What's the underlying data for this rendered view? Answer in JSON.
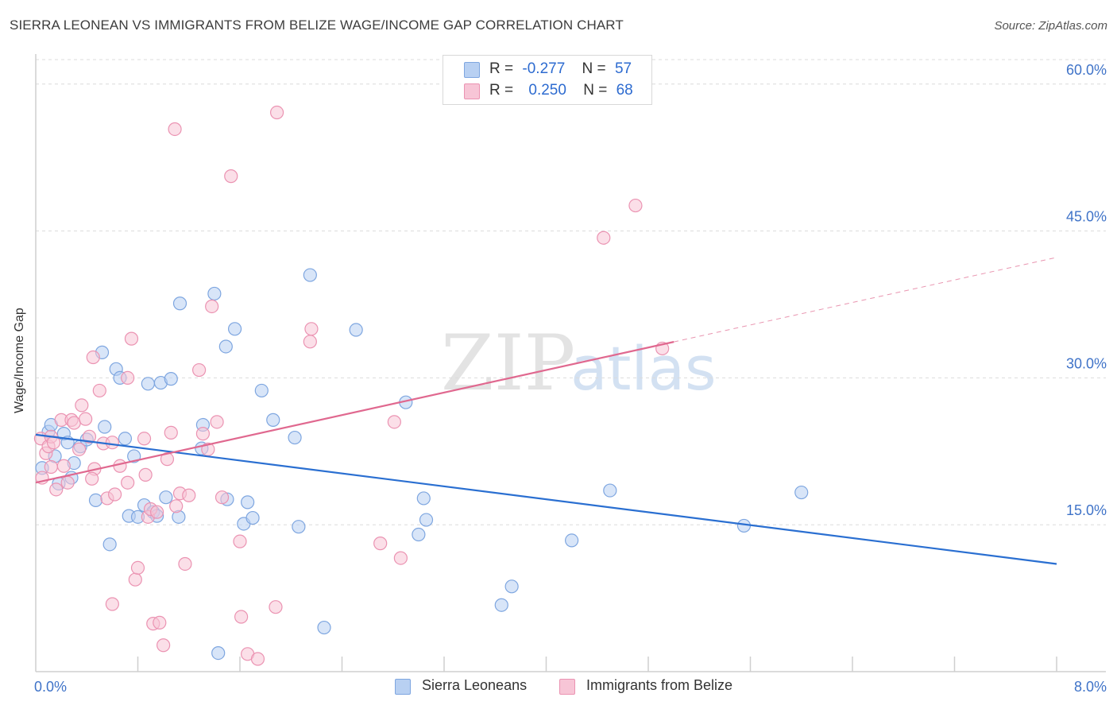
{
  "title": "SIERRA LEONEAN VS IMMIGRANTS FROM BELIZE WAGE/INCOME GAP CORRELATION CHART",
  "source": "Source: ZipAtlas.com",
  "watermark": {
    "zip": "ZIP",
    "atlas": "atlas"
  },
  "colors": {
    "blue_fill": "#b8d0f2",
    "blue_stroke": "#7ea6e0",
    "blue_line": "#2a6fd1",
    "pink_fill": "#f7c5d6",
    "pink_stroke": "#eb93b2",
    "pink_line": "#e0688f",
    "tick_text": "#3f73c8",
    "grid": "#dcdcdc"
  },
  "legend": {
    "rows": [
      {
        "r_label": "R =",
        "r_value": "-0.277",
        "n_label": "N =",
        "n_value": "57"
      },
      {
        "r_label": "R =",
        "r_value": "0.250",
        "n_label": "N =",
        "n_value": "68"
      }
    ]
  },
  "chart_data": {
    "type": "scatter",
    "title": "SIERRA LEONEAN VS IMMIGRANTS FROM BELIZE WAGE/INCOME GAP CORRELATION CHART",
    "xlabel": "",
    "ylabel": "Wage/Income Gap",
    "xlim": [
      0,
      8
    ],
    "ylim": [
      0,
      62.5
    ],
    "x_tick_labels": [
      "0.0%",
      "8.0%"
    ],
    "y_ticks": [
      15,
      30,
      45,
      60
    ],
    "y_tick_labels": [
      "15.0%",
      "30.0%",
      "45.0%",
      "60.0%"
    ],
    "grid": true,
    "series": [
      {
        "name": "Sierra Leoneans",
        "color": "blue",
        "r": -0.277,
        "n": 57,
        "trend": {
          "x0": 0.0,
          "y0": 24.2,
          "x1": 8.0,
          "y1": 11.0,
          "solid_until": 8.0
        },
        "points": [
          [
            0.05,
            20.8
          ],
          [
            0.1,
            24.5
          ],
          [
            0.12,
            25.2
          ],
          [
            0.15,
            22.0
          ],
          [
            0.18,
            19.2
          ],
          [
            0.22,
            24.3
          ],
          [
            0.25,
            23.4
          ],
          [
            0.28,
            19.8
          ],
          [
            0.3,
            21.3
          ],
          [
            0.35,
            23.0
          ],
          [
            0.4,
            23.7
          ],
          [
            0.47,
            17.5
          ],
          [
            0.52,
            32.6
          ],
          [
            0.54,
            25.0
          ],
          [
            0.58,
            13.0
          ],
          [
            0.63,
            30.9
          ],
          [
            0.66,
            30.0
          ],
          [
            0.7,
            23.8
          ],
          [
            0.73,
            15.9
          ],
          [
            0.77,
            22.0
          ],
          [
            0.8,
            15.8
          ],
          [
            0.85,
            17.0
          ],
          [
            0.88,
            29.4
          ],
          [
            0.92,
            16.3
          ],
          [
            0.95,
            15.9
          ],
          [
            0.98,
            29.5
          ],
          [
            1.02,
            17.8
          ],
          [
            1.06,
            29.9
          ],
          [
            1.12,
            15.8
          ],
          [
            1.13,
            37.6
          ],
          [
            1.3,
            22.8
          ],
          [
            1.31,
            25.2
          ],
          [
            1.4,
            38.6
          ],
          [
            1.43,
            1.9
          ],
          [
            1.49,
            33.2
          ],
          [
            1.5,
            17.6
          ],
          [
            1.56,
            35.0
          ],
          [
            1.63,
            15.1
          ],
          [
            1.66,
            17.3
          ],
          [
            1.7,
            15.7
          ],
          [
            1.77,
            28.7
          ],
          [
            1.86,
            25.7
          ],
          [
            2.03,
            23.9
          ],
          [
            2.06,
            14.8
          ],
          [
            2.15,
            40.5
          ],
          [
            2.26,
            4.5
          ],
          [
            2.51,
            34.9
          ],
          [
            2.9,
            27.5
          ],
          [
            3.0,
            14.0
          ],
          [
            3.04,
            17.7
          ],
          [
            3.06,
            15.5
          ],
          [
            3.65,
            6.8
          ],
          [
            3.73,
            8.7
          ],
          [
            4.2,
            13.4
          ],
          [
            4.5,
            18.5
          ],
          [
            5.55,
            14.9
          ],
          [
            6.0,
            18.3
          ]
        ]
      },
      {
        "name": "Immigrants from Belize",
        "color": "pink",
        "r": 0.25,
        "n": 68,
        "trend": {
          "x0": 0.0,
          "y0": 19.3,
          "x1": 8.0,
          "y1": 42.3,
          "solid_until": 5.0
        },
        "points": [
          [
            0.04,
            23.8
          ],
          [
            0.05,
            19.8
          ],
          [
            0.08,
            22.3
          ],
          [
            0.1,
            23.0
          ],
          [
            0.12,
            24.0
          ],
          [
            0.14,
            23.4
          ],
          [
            0.16,
            18.6
          ],
          [
            0.2,
            25.7
          ],
          [
            0.22,
            21.0
          ],
          [
            0.25,
            19.3
          ],
          [
            0.28,
            25.7
          ],
          [
            0.3,
            25.4
          ],
          [
            0.34,
            22.7
          ],
          [
            0.36,
            27.2
          ],
          [
            0.39,
            25.8
          ],
          [
            0.42,
            24.0
          ],
          [
            0.45,
            32.1
          ],
          [
            0.46,
            20.7
          ],
          [
            0.5,
            28.7
          ],
          [
            0.53,
            23.3
          ],
          [
            0.56,
            17.7
          ],
          [
            0.6,
            23.4
          ],
          [
            0.6,
            6.9
          ],
          [
            0.62,
            18.1
          ],
          [
            0.66,
            21.0
          ],
          [
            0.72,
            30.0
          ],
          [
            0.72,
            19.3
          ],
          [
            0.75,
            34.0
          ],
          [
            0.78,
            9.4
          ],
          [
            0.8,
            10.6
          ],
          [
            0.85,
            23.8
          ],
          [
            0.86,
            20.1
          ],
          [
            0.88,
            15.8
          ],
          [
            0.9,
            16.6
          ],
          [
            0.92,
            4.9
          ],
          [
            0.95,
            16.3
          ],
          [
            0.97,
            5.0
          ],
          [
            1.0,
            2.7
          ],
          [
            1.03,
            21.7
          ],
          [
            1.06,
            24.4
          ],
          [
            1.09,
            55.4
          ],
          [
            1.13,
            18.2
          ],
          [
            1.17,
            11.0
          ],
          [
            1.2,
            18.0
          ],
          [
            1.28,
            30.8
          ],
          [
            1.31,
            24.3
          ],
          [
            1.35,
            22.7
          ],
          [
            1.38,
            37.3
          ],
          [
            1.42,
            25.5
          ],
          [
            1.46,
            17.8
          ],
          [
            1.53,
            50.6
          ],
          [
            1.6,
            13.3
          ],
          [
            1.61,
            5.6
          ],
          [
            1.66,
            1.8
          ],
          [
            1.74,
            1.3
          ],
          [
            1.88,
            6.6
          ],
          [
            1.89,
            57.1
          ],
          [
            2.15,
            33.7
          ],
          [
            2.16,
            35.0
          ],
          [
            2.7,
            13.1
          ],
          [
            2.81,
            25.5
          ],
          [
            2.86,
            11.6
          ],
          [
            4.45,
            44.3
          ],
          [
            4.7,
            47.6
          ],
          [
            4.91,
            33.0
          ],
          [
            0.12,
            20.9
          ],
          [
            0.44,
            19.7
          ],
          [
            1.1,
            16.9
          ]
        ]
      }
    ]
  },
  "bottom_legend": [
    {
      "label": "Sierra Leoneans"
    },
    {
      "label": "Immigrants from Belize"
    }
  ]
}
